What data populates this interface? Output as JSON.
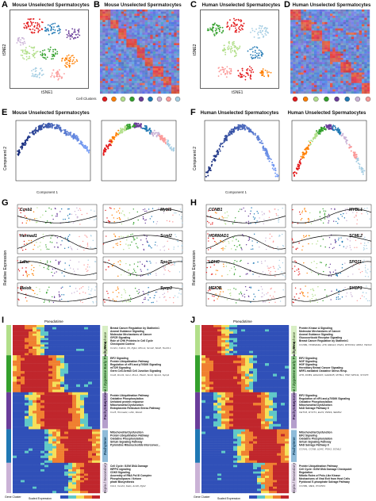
{
  "labels": {
    "A": "A",
    "B": "B",
    "C": "C",
    "D": "D",
    "E": "E",
    "F": "F",
    "G": "G",
    "H": "H",
    "I": "I",
    "J": "J"
  },
  "titles": {
    "A": "Mouse Unselected Spermatocytes",
    "B": "Mouse Unselected Spermatocytes",
    "C": "Human Unselected Spermatocytes",
    "D": "Human Unselected Spermatocytes",
    "E1": "Mouse Unselected Spermatocytes",
    "F1": "Human Unselected Spermatocytes",
    "F2": "Human Unselected Spermatocytes"
  },
  "axes": {
    "tsne1": "tSNE1",
    "tsne2": "tSNE2",
    "comp1": "Component 1",
    "comp2": "Component 2",
    "relexp": "Relative Expression",
    "pseudotime": "Pseudotime",
    "cellclusters": "Cell Clusters",
    "genes": "Genes",
    "genecluster": "Gene Cluster",
    "scaled": "Scaled Expression"
  },
  "genes_mouse": [
    "Ccnb1",
    "Mybl1",
    "Hormad1",
    "Scml2",
    "Ldhc",
    "Spo11",
    "Meiob",
    "Sycp3"
  ],
  "genes_human": [
    "CCNB1",
    "MYBL1",
    "HORMAD1",
    "SCML2",
    "LDHC",
    "SPO11",
    "MEIOB",
    "SYCP3"
  ],
  "stages_I": [
    "Prophase",
    "Leptotene / Zygotene Early Pachytene",
    "Pachytene",
    "Pachytene",
    "Diplo / Secondary"
  ],
  "stages_J": [
    "Prophase",
    "Leptotene / Zygotene Early Pachytene",
    "Pachytene",
    "Pachytene",
    "Diplo / Secondary"
  ],
  "paths_I": [
    {
      "t": "Breast Cancer Regulation by Stathmin1\nAxonal Guidance Signaling\nMolecular Mechanisms of Cancer\nGPCR Signaling\nRole of CHK Proteins in Cell Cycle\nCheckpoint Control",
      "g": "Ccnb1, Cdkn1, Kit, Pgk1, Rhno1, Scml2, Stra8, Tex19.1"
    },
    {
      "t": "EIF2 Signaling\nProtein Ubiquitination Pathway\nRegulation of eIF4 and p70S6K Signaling\nmTOR Signaling\nGerm Cell-Sertoli Cell Junction Signaling",
      "g": "Cox6, Dmrt1, Gm1, Mns1, Piwil1, Sox9, Spo11, Sycp1"
    },
    {
      "t": "Protein Ubiquitination Pathway\nOxidative Phosphorylation\nUnfolded protein response\nMitochondrial Dysfunction\nEndoplasmic Reticulum Stress Pathway",
      "g": "Cox5, Hormad1, Ldhc, Meiob"
    },
    {
      "t": "Mitochondrial Dysfunction\nProtein Ubiquitination Pathway\nOxidative Phosphorylation\nSirtuin Signaling Pathway\nPyrimidine Ribonucleotide Interconver...",
      "g": ""
    },
    {
      "t": "Cell Cycle: G2/M DNA Damage\nHIPPO signaling\nCDK5 Signaling\nAssembly of RNA Pol III Complex\nPhospholipases / Ketone\nphate Biosynthesis",
      "g": "Cdc1, Cenb1, Fads, Acsl6, Pgk2"
    }
  ],
  "paths_J": [
    {
      "t": "Protein Kinase A Signaling\nMolecular Mechanisms of Cancer\nAxonal Guidance Signaling\nGlucocorticoid Receptor Signaling\nBreast Cancer Regulation by Stathmin1",
      "g": "CCNB1, HORMAD1, ATF, REG10, PGK1, RHOXF2, RPA3, TEX19"
    },
    {
      "t": "EIF2 Signaling\nNGF Signaling\nHGF Signaling\nHereditary Breast Cancer Signaling\nNRF2-mediated Oxidative Stress Resp.",
      "g": "ATR, DCBS, EIF2AK3, GADD45, MYBL1, HSP, SPO11, SYCP3"
    },
    {
      "t": "EIF2 Signaling\nRegulation of eIF4 and p70S6K Signaling\nOxidative Phosphorylation\nMitochondrial Dysfunction\nNAD Salvage Pathway II",
      "g": "CETN3, DYNT1, ELP2, PRSS, SEMF2"
    },
    {
      "t": "Mitochondrial Dysfunction\nEIF2 Signaling\nOxidative Phosphorylation\nSirtuin Signaling Pathway\nNAD Salvage Pathway II",
      "g": "CCNA1, CCNB, LDHC, PGK2, SCML2"
    },
    {
      "t": "Protein Ubiquitination Pathway\nCell Cycle: G2/M DNA Damage Checkpoint\nRegulation\nMitotic Roles of Polo-Like Kinase\nMechanisms of Viral Exit from Host Cells\nPyridoxal 5'-phosphate Salvage Pathway",
      "g": "CCNB1, MEI1, POU5F1"
    }
  ],
  "colors": {
    "c1": "#e31a1c",
    "c2": "#ff7f00",
    "c3": "#b2df8a",
    "c4": "#33a02c",
    "c5": "#6a3d9a",
    "c6": "#1f78b4",
    "c7": "#cab2d6",
    "c8": "#fb9a99",
    "c9": "#a6cee3",
    "hmRed": "#c0392b",
    "hmBlue": "#3a5fcd"
  }
}
